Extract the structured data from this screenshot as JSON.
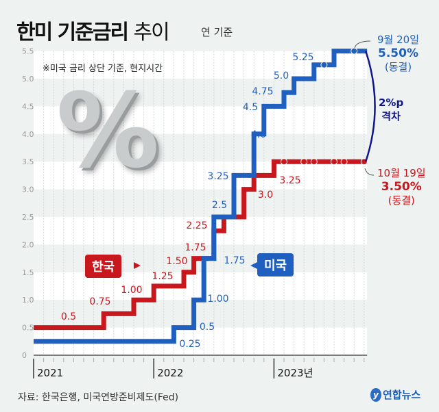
{
  "title": {
    "bold": "한미 기준금리",
    "light": "추이"
  },
  "unit_note": "연 기준",
  "footnote": "※미국 금리 상단 기준, 현지시간",
  "source": "자료: 한국은행, 미국연방준비제도(Fed)",
  "logo": "연합뉴스",
  "us_annotation": {
    "date": "9월 20일",
    "rate": "5.50%",
    "status": "(동결)"
  },
  "kr_annotation": {
    "date": "10월 19일",
    "rate": "3.50%",
    "status": "(동결)"
  },
  "gap_annotation": {
    "value": "2%p",
    "label": "격차"
  },
  "colors": {
    "korea": "#c8171d",
    "us": "#1f5fbf",
    "gap": "#10168a"
  },
  "chart_data": {
    "type": "line",
    "title": "한미 기준금리 추이",
    "ylabel": "연 %",
    "ylim": [
      0,
      5.5
    ],
    "yticks": [
      "0",
      "0.5",
      "1.0",
      "1.5",
      "2.0",
      "2.5",
      "3.0",
      "3.5",
      "4.0",
      "4.5",
      "5.0",
      "5.5"
    ],
    "x_start": "2021-01",
    "x_end": "2023-10",
    "xticks": [
      "2021",
      "2022",
      "2023년"
    ],
    "grid": true,
    "series": [
      {
        "name": "한국",
        "color": "#c8171d",
        "steps": [
          {
            "date": "2021-01",
            "value": 0.5,
            "label": "0.5"
          },
          {
            "date": "2021-08",
            "value": 0.75,
            "label": "0.75"
          },
          {
            "date": "2021-11",
            "value": 1.0,
            "label": "1.00"
          },
          {
            "date": "2022-01",
            "value": 1.25,
            "label": "1.25"
          },
          {
            "date": "2022-04",
            "value": 1.5,
            "label": "1.50"
          },
          {
            "date": "2022-05",
            "value": 1.75,
            "label": "1.75"
          },
          {
            "date": "2022-07",
            "value": 2.25,
            "label": "2.25"
          },
          {
            "date": "2022-08",
            "value": 2.5,
            "label": ""
          },
          {
            "date": "2022-10",
            "value": 3.0,
            "label": "3.0"
          },
          {
            "date": "2022-11",
            "value": 3.25,
            "label": "3.25"
          },
          {
            "date": "2023-01",
            "value": 3.5,
            "label": ""
          }
        ],
        "hold_dots": [
          "2023-02",
          "2023-04",
          "2023-05",
          "2023-07",
          "2023-08",
          "2023-10"
        ]
      },
      {
        "name": "미국",
        "color": "#1f5fbf",
        "steps": [
          {
            "date": "2021-01",
            "value": 0.25,
            "label": "0.25"
          },
          {
            "date": "2022-03",
            "value": 0.5,
            "label": "0.5"
          },
          {
            "date": "2022-05",
            "value": 1.0,
            "label": "1.00"
          },
          {
            "date": "2022-06",
            "value": 1.75,
            "label": "1.75"
          },
          {
            "date": "2022-07",
            "value": 2.5,
            "label": "2.5"
          },
          {
            "date": "2022-09",
            "value": 3.25,
            "label": "3.25"
          },
          {
            "date": "2022-11",
            "value": 4.0,
            "label": "4.0"
          },
          {
            "date": "2022-12",
            "value": 4.5,
            "label": "4.5"
          },
          {
            "date": "2023-02",
            "value": 4.75,
            "label": "4.75"
          },
          {
            "date": "2023-03",
            "value": 5.0,
            "label": "5.0"
          },
          {
            "date": "2023-05",
            "value": 5.25,
            "label": "5.25"
          },
          {
            "date": "2023-07",
            "value": 5.5,
            "label": ""
          }
        ],
        "hold_dots": [
          "2023-06",
          "2023-09"
        ]
      }
    ]
  }
}
